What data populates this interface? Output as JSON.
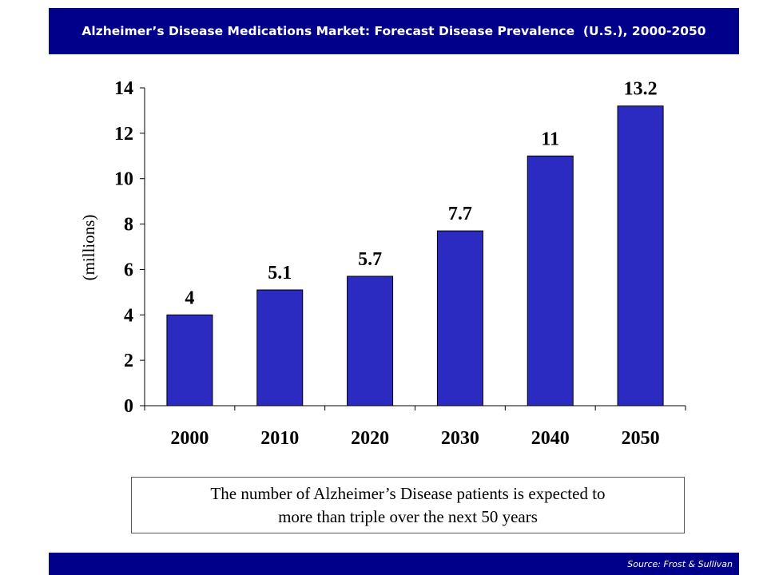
{
  "header": {
    "title": "Alzheimer’s Disease Medications Market: Forecast Disease Prevalence  (U.S.), 2000-2050"
  },
  "chart_data": {
    "type": "bar",
    "categories": [
      "2000",
      "2010",
      "2020",
      "2030",
      "2040",
      "2050"
    ],
    "values": [
      4,
      5.1,
      5.7,
      7.7,
      11,
      13.2
    ],
    "data_labels": [
      "4",
      "5.1",
      "5.7",
      "7.7",
      "11",
      "13.2"
    ],
    "title": "Alzheimer’s Disease Medications Market: Forecast Disease Prevalence  (U.S.), 2000-2050",
    "xlabel": "",
    "ylabel": "(millions)",
    "ylim": [
      0,
      14
    ],
    "yticks": [
      0,
      2,
      4,
      6,
      8,
      10,
      12,
      14
    ],
    "grid": false,
    "bar_color": "#2b2bc2"
  },
  "note": {
    "line1": "The number of Alzheimer’s Disease patients is expected to",
    "line2": "more than triple over the next 50 years"
  },
  "footer": {
    "source": "Source: Frost & Sullivan"
  },
  "colors": {
    "banner": "#00008b",
    "bar": "#2b2bc2"
  }
}
